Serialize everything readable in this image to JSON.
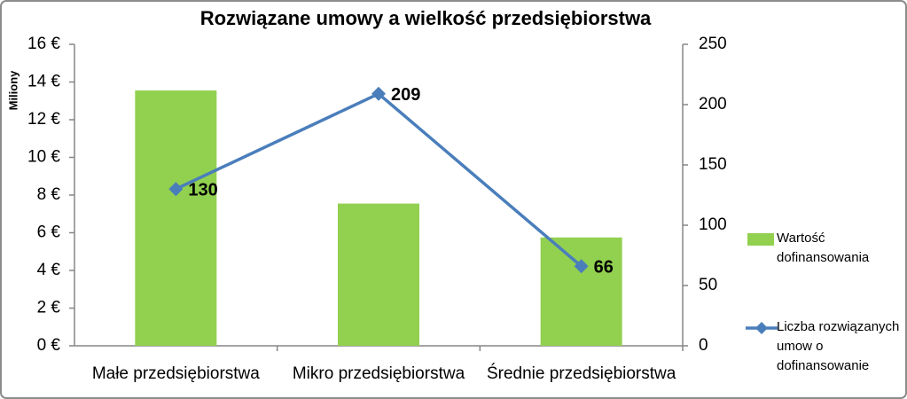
{
  "chart_data": {
    "type": "bar",
    "title": "Rozwiązane umowy a wielkość przedsiębiorstwa",
    "y_label": "Miliony",
    "categories": [
      "Małe przedsiębiorstwa",
      "Mikro przedsiębiorstwa",
      "Średnie przedsiębiorstwa"
    ],
    "series": [
      {
        "name": "Wartość dofinansowania",
        "type": "bar",
        "color": "#92d050",
        "values": [
          13.55,
          7.55,
          5.75
        ]
      },
      {
        "name": "Liczba rozwiązanych umow o dofinansowanie",
        "type": "line",
        "axis": "y2",
        "color": "#4a7ebb",
        "values": [
          130,
          209,
          66
        ]
      }
    ],
    "ylim": [
      0,
      16
    ],
    "yticks": [
      {
        "value": 0,
        "label": "0 €"
      },
      {
        "value": 2,
        "label": "2 €"
      },
      {
        "value": 4,
        "label": "4 €"
      },
      {
        "value": 6,
        "label": "6 €"
      },
      {
        "value": 8,
        "label": "8 €"
      },
      {
        "value": 10,
        "label": "10 €"
      },
      {
        "value": 12,
        "label": "12 €"
      },
      {
        "value": 14,
        "label": "14 €"
      },
      {
        "value": 16,
        "label": "16 €"
      }
    ],
    "y2lim": [
      0,
      250
    ],
    "y2ticks": [
      0,
      50,
      100,
      150,
      200,
      250
    ],
    "legend": "right",
    "grid": false
  }
}
